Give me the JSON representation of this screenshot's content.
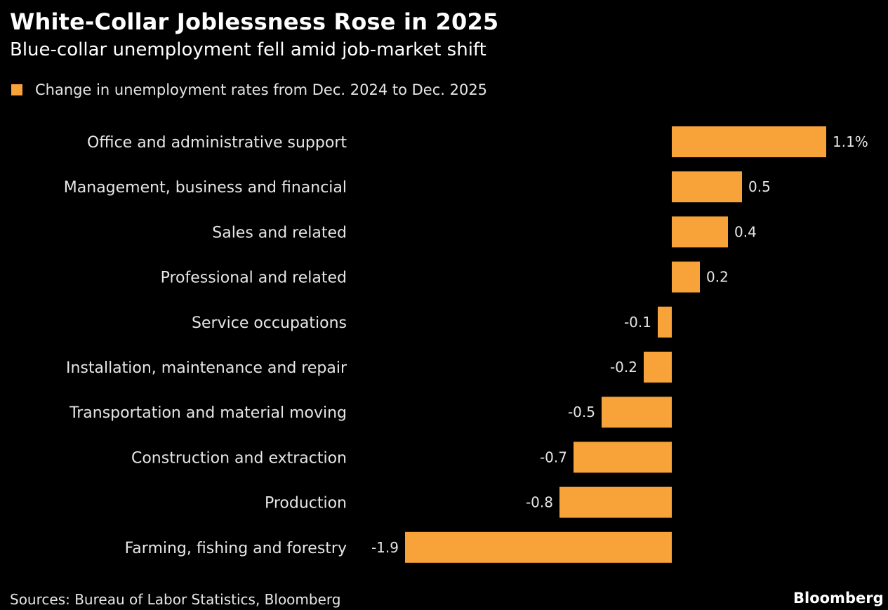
{
  "header": {
    "title": "White-Collar Joblessness Rose in 2025",
    "subtitle": "Blue-collar unemployment fell amid job-market shift"
  },
  "legend": {
    "label": "Change in unemployment rates from Dec. 2024 to Dec. 2025"
  },
  "footer": {
    "source": "Sources: Bureau of Labor Statistics, Bloomberg",
    "brand": "Bloomberg"
  },
  "colors": {
    "background": "#000000",
    "bar": "#f8a23a",
    "text": "#e6e6e6"
  },
  "chart_data": {
    "type": "bar",
    "orientation": "horizontal",
    "categories": [
      "Office and administrative support",
      "Management, business and financial",
      "Sales and related",
      "Professional and related",
      "Service occupations",
      "Installation, maintenance and repair",
      "Transportation and material moving",
      "Construction and extraction",
      "Production",
      "Farming, fishing and forestry"
    ],
    "values": [
      1.1,
      0.5,
      0.4,
      0.2,
      -0.1,
      -0.2,
      -0.5,
      -0.7,
      -0.8,
      -1.9
    ],
    "value_labels": [
      "1.1%",
      "0.5",
      "0.4",
      "0.2",
      "-0.1",
      "-0.2",
      "-0.5",
      "-0.7",
      "-0.8",
      "-1.9"
    ],
    "series": [
      {
        "name": "Change in unemployment rates from Dec. 2024 to Dec. 2025",
        "values": [
          1.1,
          0.5,
          0.4,
          0.2,
          -0.1,
          -0.2,
          -0.5,
          -0.7,
          -0.8,
          -1.9
        ]
      }
    ],
    "title": "White-Collar Joblessness Rose in 2025",
    "subtitle": "Blue-collar unemployment fell amid job-market shift",
    "legend_position": "top-left",
    "grid": false,
    "xlim": [
      -1.9,
      1.1
    ]
  }
}
